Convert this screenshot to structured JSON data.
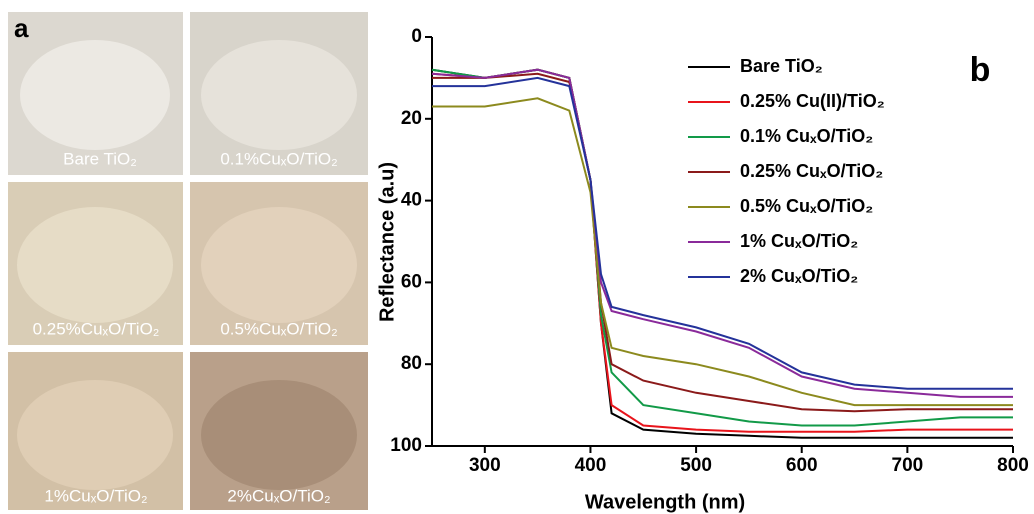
{
  "panel_a": {
    "label": "a",
    "photos": [
      {
        "label": "Bare TiO₂"
      },
      {
        "label": "0.1%CuₓO/TiO₂"
      },
      {
        "label": "0.25%CuₓO/TiO₂"
      },
      {
        "label": "0.5%CuₓO/TiO₂"
      },
      {
        "label": "1%CuₓO/TiO₂"
      },
      {
        "label": "2%CuₓO/TiO₂"
      }
    ]
  },
  "chart_data": {
    "type": "line",
    "panel_label": "b",
    "x_label": "Wavelength (nm)",
    "y_label": "Reflectance (a.u)",
    "x": [
      250,
      300,
      350,
      380,
      400,
      410,
      420,
      450,
      500,
      550,
      600,
      650,
      700,
      750,
      800
    ],
    "xlim": [
      250,
      800
    ],
    "xticks": [
      300,
      400,
      500,
      600,
      700,
      800
    ],
    "ylim": [
      0,
      100
    ],
    "yticks": [
      0,
      20,
      40,
      60,
      80,
      100
    ],
    "y_inverted": true,
    "legend": "upper right",
    "series": [
      {
        "name": "Bare TiO₂",
        "color": "#000000",
        "values": [
          8,
          10,
          8,
          10,
          35,
          70,
          92,
          96,
          97,
          97.5,
          98,
          98,
          98,
          98,
          98
        ]
      },
      {
        "name": "0.25% Cu(II)/TiO₂",
        "color": "#e8141b",
        "values": [
          9,
          10,
          8,
          10,
          35,
          70,
          90,
          95,
          96,
          96.5,
          96.5,
          96.5,
          96,
          96,
          96
        ]
      },
      {
        "name": "0.1% CuₓO/TiO₂",
        "color": "#129a48",
        "values": [
          8,
          10,
          8,
          10,
          35,
          68,
          82,
          90,
          92,
          94,
          95,
          95,
          94,
          93,
          93
        ]
      },
      {
        "name": "0.25% CuₓO/TiO₂",
        "color": "#8b1a1a",
        "values": [
          10,
          10,
          9,
          11,
          35,
          65,
          80,
          84,
          87,
          89,
          91,
          91.5,
          91,
          91,
          91
        ]
      },
      {
        "name": "0.5% CuₓO/TiO₂",
        "color": "#8c8a1e",
        "values": [
          17,
          17,
          15,
          18,
          38,
          65,
          76,
          78,
          80,
          83,
          87,
          90,
          90,
          90,
          90
        ]
      },
      {
        "name": "1% CuₓO/TiO₂",
        "color": "#8a2a9a",
        "values": [
          9,
          10,
          8,
          10,
          35,
          60,
          67,
          69,
          72,
          76,
          83,
          86,
          87,
          88,
          88
        ]
      },
      {
        "name": "2% CuₓO/TiO₂",
        "color": "#24329a",
        "values": [
          12,
          12,
          10,
          12,
          35,
          58,
          66,
          68,
          71,
          75,
          82,
          85,
          86,
          86,
          86
        ]
      }
    ]
  }
}
